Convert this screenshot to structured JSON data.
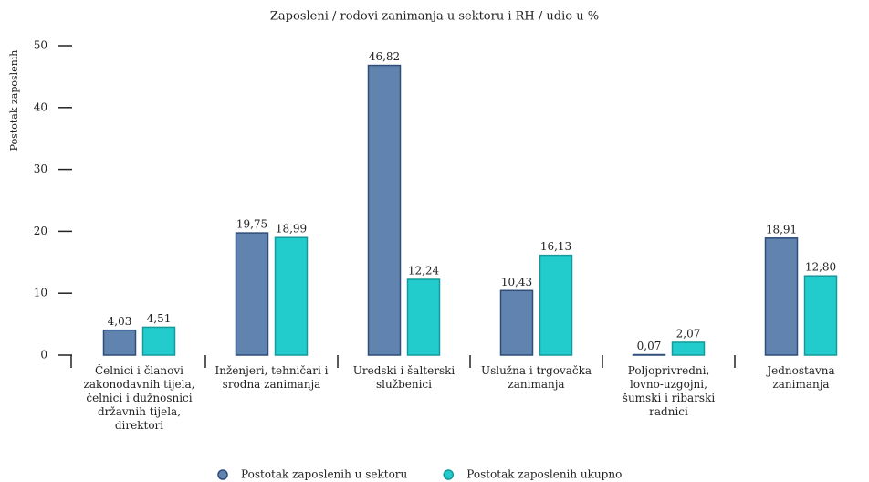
{
  "chart_data": {
    "type": "bar",
    "title": "Zaposleni / rodovi zanimanja u sektoru i RH / udio u %",
    "y_label": "Postotak zaposlenih",
    "categories": [
      "Čelnici i članovi zakonodavnih tijela, čelnici i dužnosnici državnih tijela, direktori",
      "Inženjeri, tehničari i srodna zanimanja",
      "Uredski i šalterski službenici",
      "Uslužna i trgovačka zanimanja",
      "Poljoprivredni, lovno-uzgojni, šumski i ribarski radnici",
      "Jednostavna zanimanja"
    ],
    "series": [
      {
        "name": "Postotak zaposlenih u sektoru",
        "color": "#6083b0",
        "stroke": "#2f4d78",
        "values": [
          4.03,
          19.75,
          46.82,
          10.43,
          0.07,
          18.91
        ],
        "value_labels": [
          "4,03",
          "19,75",
          "46,82",
          "10,43",
          "0,07",
          "18,91"
        ]
      },
      {
        "name": "Postotak zaposlenih ukupno",
        "color": "#22cccc",
        "stroke": "#15999c",
        "values": [
          4.51,
          18.99,
          12.24,
          16.13,
          2.07,
          12.8
        ],
        "value_labels": [
          "4,51",
          "18,99",
          "12,24",
          "16,13",
          "2,07",
          "12,80"
        ]
      }
    ],
    "ylim": [
      0,
      50
    ],
    "yticks": [
      0,
      10,
      20,
      30,
      40,
      50
    ],
    "legend": "bottom"
  }
}
